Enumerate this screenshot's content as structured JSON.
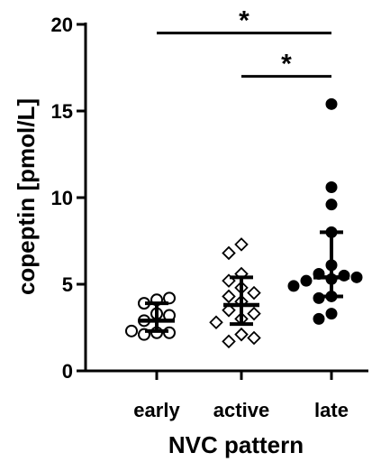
{
  "chart_data": {
    "type": "scatter",
    "title": "",
    "xlabel": "NVC pattern",
    "ylabel": "copeptin [pmol/L]",
    "ylim": [
      0,
      20
    ],
    "yticks": [
      0,
      5,
      10,
      15,
      20
    ],
    "categories": [
      "early",
      "active",
      "late"
    ],
    "groups": [
      {
        "category": "early",
        "marker": "circle-open",
        "values": [
          4.1,
          3.9,
          4.2,
          3.3,
          3.2,
          2.9,
          2.2,
          2.2,
          2.3,
          2.1
        ],
        "mean": 2.9,
        "sd_low": 2.3,
        "sd_high": 3.9
      },
      {
        "category": "active",
        "marker": "diamond-open",
        "values": [
          7.3,
          6.8,
          5.6,
          5.2,
          4.8,
          4.5,
          4.3,
          4.0,
          3.5,
          3.3,
          3.0,
          2.8,
          2.1,
          1.7,
          1.9
        ],
        "mean": 3.8,
        "sd_low": 2.7,
        "sd_high": 5.4
      },
      {
        "category": "late",
        "marker": "circle-filled",
        "values": [
          15.4,
          10.6,
          9.6,
          8.0,
          6.1,
          5.6,
          5.3,
          5.5,
          5.2,
          5.4,
          4.9,
          4.3,
          4.2,
          3.3,
          3.0
        ],
        "mean": 5.4,
        "sd_low": 4.3,
        "sd_high": 8.0
      }
    ],
    "significance": [
      {
        "from": "early",
        "to": "late",
        "level": 19.5,
        "label": "*"
      },
      {
        "from": "active",
        "to": "late",
        "level": 17.0,
        "label": "*"
      }
    ],
    "grid": false,
    "legend": "none"
  }
}
